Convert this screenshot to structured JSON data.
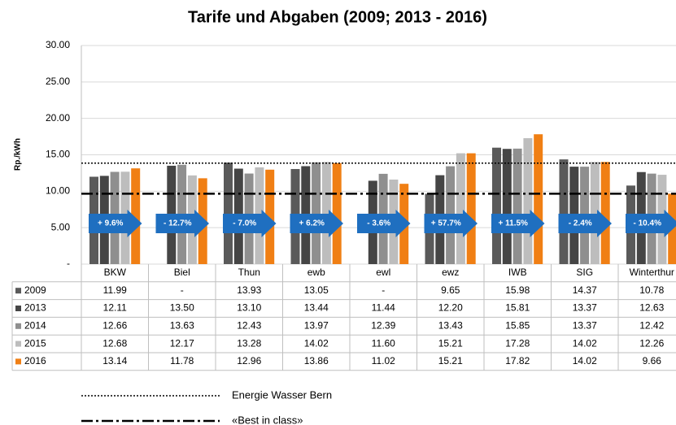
{
  "chart_data": {
    "type": "bar",
    "title": "Tarife und Abgaben (2009; 2013 - 2016)",
    "y_label": "Rp./kWh",
    "categories": [
      "BKW",
      "Biel",
      "Thun",
      "ewb",
      "ewl",
      "ewz",
      "IWB",
      "SIG",
      "Winterthur"
    ],
    "series": [
      {
        "name": "2009",
        "color": "#5a5a5a",
        "values": [
          11.99,
          null,
          13.93,
          13.05,
          null,
          9.65,
          15.98,
          14.37,
          10.78
        ],
        "value_labels": [
          "11.99",
          "-",
          "13.93",
          "13.05",
          "-",
          "9.65",
          "15.98",
          "14.37",
          "10.78"
        ]
      },
      {
        "name": "2013",
        "color": "#454545",
        "values": [
          12.11,
          13.5,
          13.1,
          13.44,
          11.44,
          12.2,
          15.81,
          13.37,
          12.63
        ],
        "value_labels": [
          "12.11",
          "13.50",
          "13.10",
          "13.44",
          "11.44",
          "12.20",
          "15.81",
          "13.37",
          "12.63"
        ]
      },
      {
        "name": "2014",
        "color": "#8f8f8f",
        "values": [
          12.66,
          13.63,
          12.43,
          13.97,
          12.39,
          13.43,
          15.85,
          13.37,
          12.42
        ],
        "value_labels": [
          "12.66",
          "13.63",
          "12.43",
          "13.97",
          "12.39",
          "13.43",
          "15.85",
          "13.37",
          "12.42"
        ]
      },
      {
        "name": "2015",
        "color": "#bdbdbd",
        "values": [
          12.68,
          12.17,
          13.28,
          14.02,
          11.6,
          15.21,
          17.28,
          14.02,
          12.26
        ],
        "value_labels": [
          "12.68",
          "12.17",
          "13.28",
          "14.02",
          "11.60",
          "15.21",
          "17.28",
          "14.02",
          "12.26"
        ]
      },
      {
        "name": "2016",
        "color": "#f07f14",
        "values": [
          13.14,
          11.78,
          12.96,
          13.86,
          11.02,
          15.21,
          17.82,
          14.02,
          9.66
        ],
        "value_labels": [
          "13.14",
          "11.78",
          "12.96",
          "13.86",
          "11.02",
          "15.21",
          "17.82",
          "14.02",
          "9.66"
        ]
      }
    ],
    "arrow_labels": [
      "+ 9.6%",
      "- 12.7%",
      "- 7.0%",
      "+ 6.2%",
      "- 3.6%",
      "+ 57.7%",
      "+ 11.5%",
      "- 2.4%",
      "- 10.4%"
    ],
    "arrow_color": "#1f6fc0",
    "reference_lines": [
      {
        "name": "Energie Wasser Bern",
        "value": 13.86,
        "style": "dotted"
      },
      {
        "name": "«Best in class»",
        "value": 9.66,
        "style": "dashdot"
      }
    ],
    "ylim": [
      0,
      30
    ],
    "yticks": [
      {
        "value": 0,
        "label": "-"
      },
      {
        "value": 5,
        "label": "5.00"
      },
      {
        "value": 10,
        "label": "10.00"
      },
      {
        "value": 15,
        "label": "15.00"
      },
      {
        "value": 20,
        "label": "20.00"
      },
      {
        "value": 25,
        "label": "25.00"
      },
      {
        "value": 30,
        "label": "30.00"
      }
    ],
    "grid": true
  }
}
